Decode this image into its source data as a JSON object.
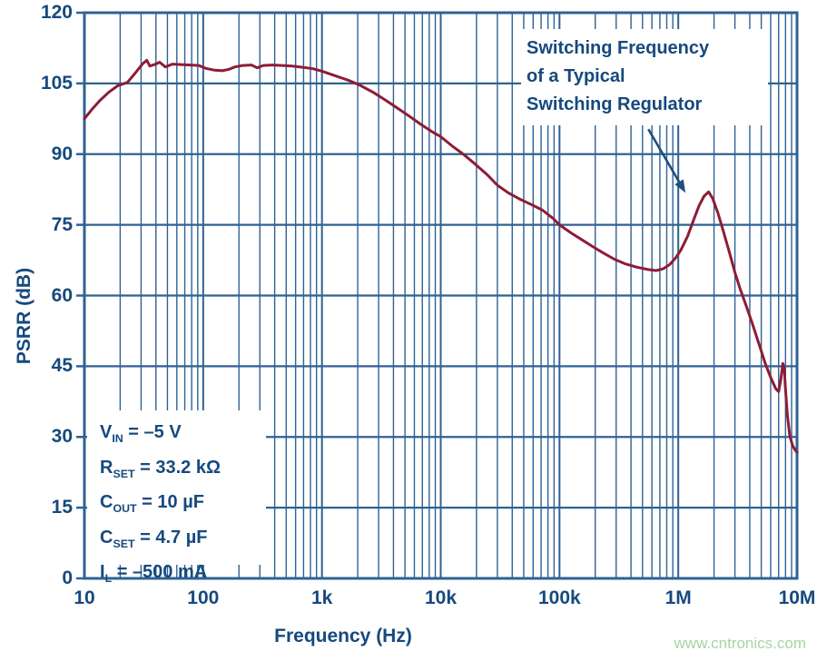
{
  "watermark": {
    "text": "www.cntronics.com"
  },
  "chart_data": {
    "type": "line",
    "title": "",
    "xlabel": "Frequency (Hz)",
    "ylabel": "PSRR (dB)",
    "x_axis": {
      "scale": "log",
      "min": 10,
      "max": 10000000,
      "ticks": [
        {
          "value": 10,
          "label": "10"
        },
        {
          "value": 100,
          "label": "100"
        },
        {
          "value": 1000,
          "label": "1k"
        },
        {
          "value": 10000,
          "label": "10k"
        },
        {
          "value": 100000,
          "label": "100k"
        },
        {
          "value": 1000000,
          "label": "1M"
        },
        {
          "value": 10000000,
          "label": "10M"
        }
      ],
      "minor_gridlines": true
    },
    "y_axis": {
      "scale": "linear",
      "min": 0,
      "max": 120,
      "step": 15,
      "ticks": [
        "0",
        "15",
        "30",
        "45",
        "60",
        "75",
        "90",
        "105",
        "120"
      ]
    },
    "grid": true,
    "colors": {
      "grid": "#2e6294",
      "curve": "#8e1c36",
      "text": "#16497e",
      "arrow": "#1d4f80",
      "watermark": "#a8d3a4"
    },
    "series": [
      {
        "name": "PSRR",
        "points": [
          [
            10,
            97.5
          ],
          [
            11.5,
            99.4
          ],
          [
            13.5,
            101.4
          ],
          [
            16,
            103.1
          ],
          [
            19,
            104.5
          ],
          [
            23,
            105.2
          ],
          [
            27,
            107.3
          ],
          [
            31,
            109.2
          ],
          [
            33.5,
            109.9
          ],
          [
            35.5,
            108.7
          ],
          [
            39,
            109.0
          ],
          [
            43,
            109.5
          ],
          [
            48,
            108.5
          ],
          [
            55,
            109.1
          ],
          [
            65,
            109.0
          ],
          [
            78,
            108.9
          ],
          [
            92,
            108.8
          ],
          [
            105,
            108.2
          ],
          [
            125,
            107.8
          ],
          [
            145,
            107.7
          ],
          [
            165,
            108.0
          ],
          [
            185,
            108.5
          ],
          [
            215,
            108.8
          ],
          [
            255,
            108.9
          ],
          [
            285,
            108.3
          ],
          [
            320,
            108.8
          ],
          [
            380,
            108.9
          ],
          [
            460,
            108.8
          ],
          [
            560,
            108.7
          ],
          [
            700,
            108.4
          ],
          [
            850,
            108.1
          ],
          [
            1000,
            107.6
          ],
          [
            1300,
            106.6
          ],
          [
            1700,
            105.6
          ],
          [
            2100,
            104.6
          ],
          [
            2700,
            103.1
          ],
          [
            3400,
            101.5
          ],
          [
            4300,
            99.8
          ],
          [
            5400,
            98.1
          ],
          [
            6800,
            96.3
          ],
          [
            8500,
            94.7
          ],
          [
            10000,
            93.7
          ],
          [
            12500,
            91.7
          ],
          [
            15500,
            90.0
          ],
          [
            19500,
            87.9
          ],
          [
            24500,
            85.7
          ],
          [
            30000,
            83.4
          ],
          [
            37000,
            81.8
          ],
          [
            46000,
            80.5
          ],
          [
            58000,
            79.3
          ],
          [
            72000,
            78.1
          ],
          [
            88000,
            76.4
          ],
          [
            100000,
            75.0
          ],
          [
            125000,
            73.3
          ],
          [
            155000,
            71.8
          ],
          [
            190000,
            70.4
          ],
          [
            235000,
            69.0
          ],
          [
            290000,
            67.7
          ],
          [
            360000,
            66.7
          ],
          [
            450000,
            66.0
          ],
          [
            560000,
            65.5
          ],
          [
            650000,
            65.3
          ],
          [
            750000,
            65.7
          ],
          [
            850000,
            66.6
          ],
          [
            950000,
            68.0
          ],
          [
            1050000,
            69.6
          ],
          [
            1200000,
            72.6
          ],
          [
            1350000,
            76.1
          ],
          [
            1500000,
            79.1
          ],
          [
            1650000,
            81.1
          ],
          [
            1800000,
            82.0
          ],
          [
            1950000,
            80.6
          ],
          [
            2150000,
            77.6
          ],
          [
            2400000,
            73.6
          ],
          [
            2700000,
            69.1
          ],
          [
            3000000,
            64.9
          ],
          [
            3300000,
            61.6
          ],
          [
            3700000,
            58.1
          ],
          [
            4200000,
            54.1
          ],
          [
            4800000,
            49.6
          ],
          [
            5400000,
            45.6
          ],
          [
            6000000,
            42.6
          ],
          [
            6600000,
            40.3
          ],
          [
            7000000,
            39.6
          ],
          [
            7300000,
            42.1
          ],
          [
            7600000,
            45.6
          ],
          [
            7800000,
            44.6
          ],
          [
            8000000,
            40.1
          ],
          [
            8300000,
            34.6
          ],
          [
            8700000,
            30.1
          ],
          [
            9200000,
            28.1
          ],
          [
            9600000,
            27.3
          ],
          [
            10000000,
            26.7
          ]
        ]
      }
    ],
    "annotation": {
      "lines": [
        "Switching Frequency",
        "of a Typical",
        "Switching Regulator"
      ],
      "arrow": {
        "from": {
          "f": 560000,
          "db": 95.3
        },
        "to": {
          "f": 1150000,
          "db": 81.8
        }
      }
    },
    "conditions": [
      {
        "base": "V",
        "sub": "IN",
        "rest": " = –5 V"
      },
      {
        "base": "R",
        "sub": "SET",
        "rest": " = 33.2 kΩ"
      },
      {
        "base": "C",
        "sub": "OUT",
        "rest": " = 10 µF"
      },
      {
        "base": "C",
        "sub": "SET",
        "rest": " = 4.7 µF"
      },
      {
        "base": "I",
        "sub": "L",
        "rest": " = –500 mA"
      }
    ]
  }
}
